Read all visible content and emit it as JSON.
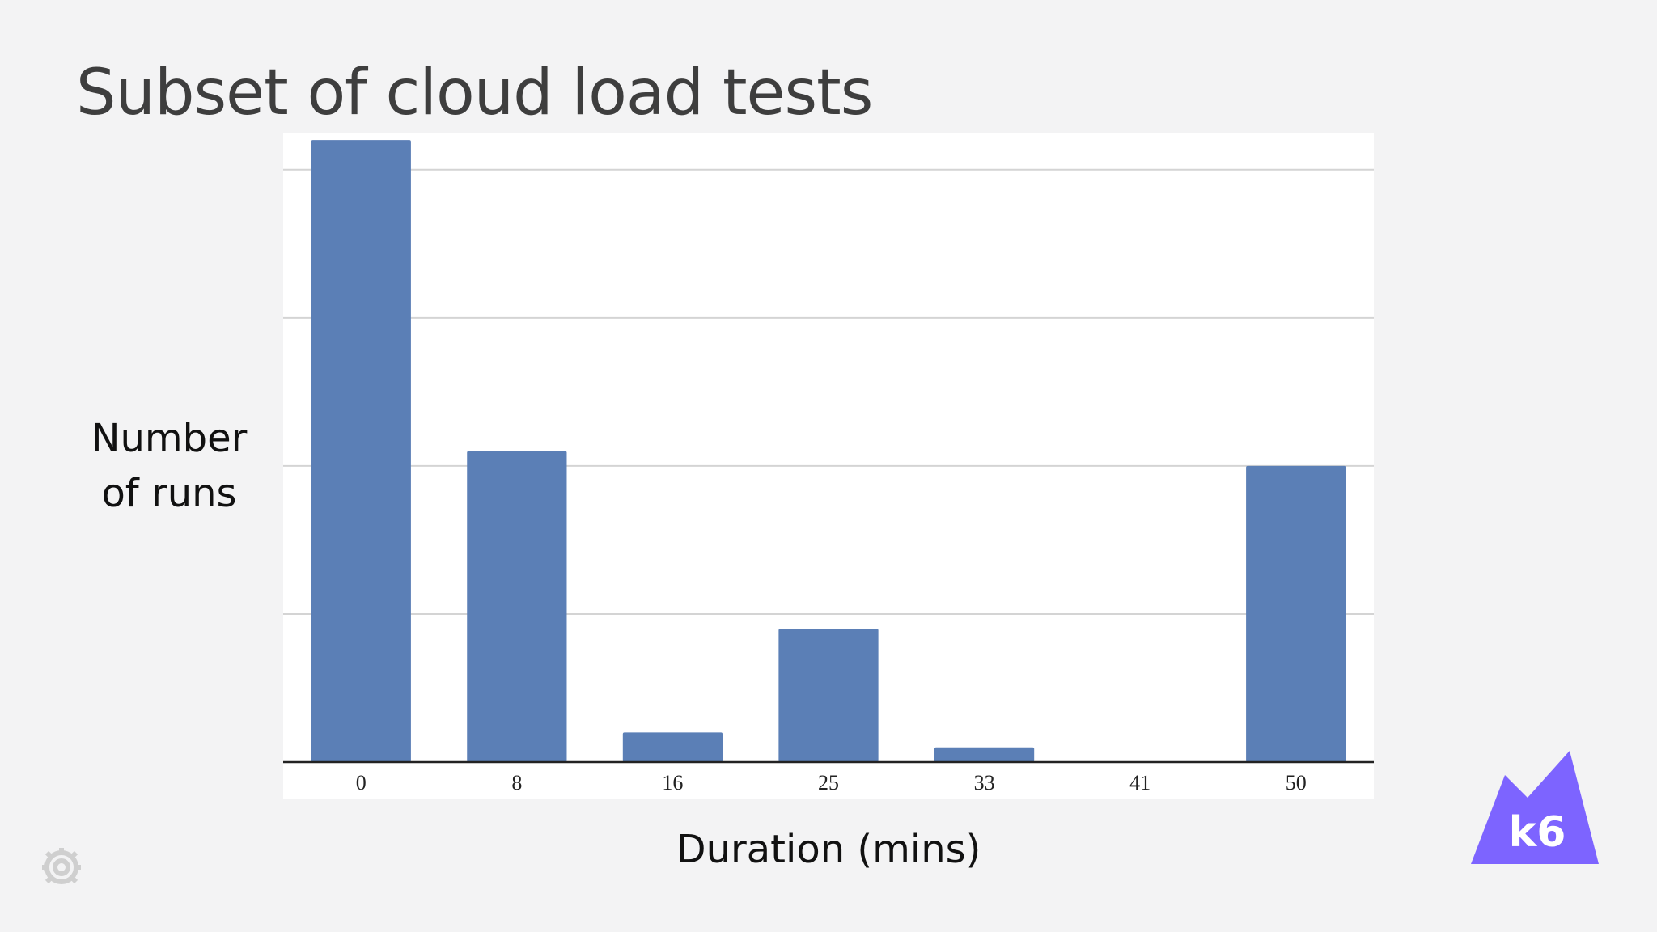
{
  "slide": {
    "title": "Subset of cloud load tests",
    "y_axis_label_line1": "Number",
    "y_axis_label_line2": "of runs",
    "x_axis_label": "Duration (mins)",
    "logo_text": "k6"
  },
  "colors": {
    "bar": "#5b7fb6",
    "gridline": "#d4d4d4",
    "baseline": "#222222",
    "k6_logo": "#7d64ff",
    "grafana_logo": "#cfcfcf"
  },
  "icons": [
    "k6-logo-icon",
    "grafana-logo-icon"
  ],
  "chart_data": {
    "type": "bar",
    "title": "Subset of cloud load tests",
    "xlabel": "Duration (mins)",
    "ylabel": "Number of runs",
    "categories": [
      "0",
      "8",
      "16",
      "25",
      "33",
      "41",
      "50"
    ],
    "values": [
      4.2,
      2.1,
      0.2,
      0.9,
      0.1,
      0,
      2.0
    ],
    "ylim": [
      0,
      4.25
    ],
    "y_gridlines": [
      0,
      1,
      2,
      3,
      4
    ],
    "y_tick_labels_shown": false,
    "grid": true,
    "legend": "none"
  }
}
